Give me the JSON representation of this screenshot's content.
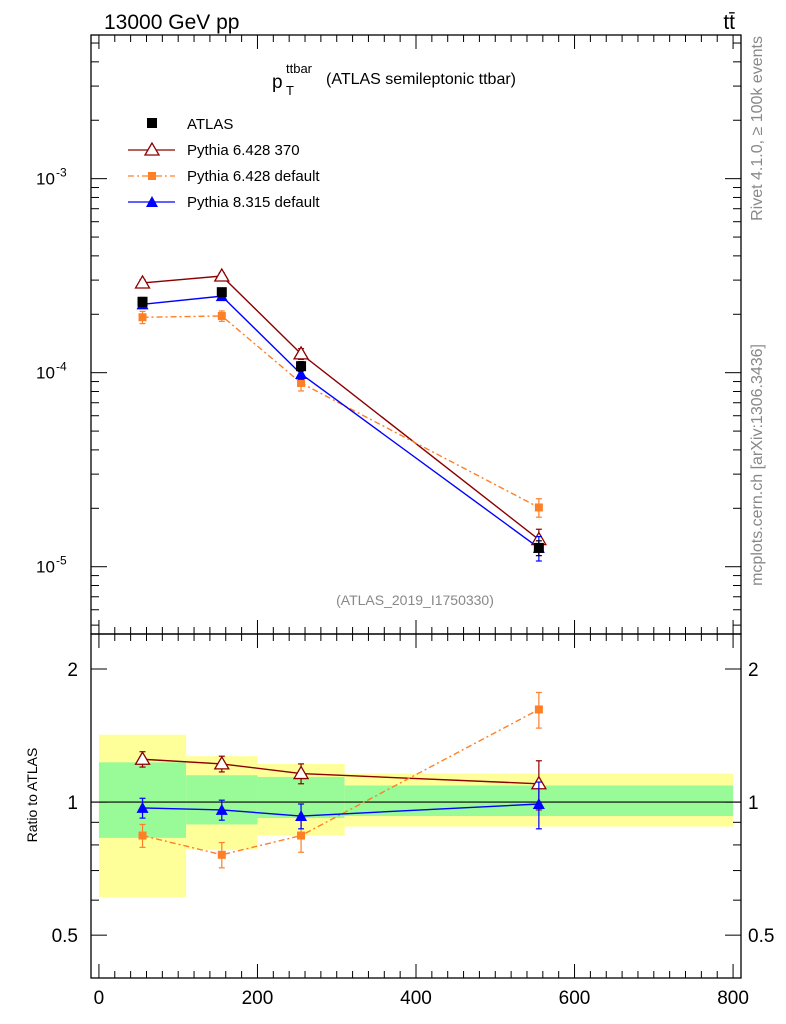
{
  "header": {
    "energy": "13000 GeV pp",
    "process": "tt̄",
    "rivet": "Rivet 4.1.0, ≥ 100k events",
    "source": "mcplots.cern.ch [arXiv:1306.3436]"
  },
  "chart_data": {
    "type": "line",
    "title_main": "p",
    "title_sup": "ttbar",
    "title_sub": "T",
    "title_rest": "(ATLAS semileptonic ttbar)",
    "analysis": "(ATLAS_2019_I1750330)",
    "xlim": [
      -10,
      810
    ],
    "ylim_main": [
      4.5e-06,
      0.0055
    ],
    "ylim_ratio": [
      0.4,
      2.4
    ],
    "ylabel_ratio": "Ratio to ATLAS",
    "yticks_main": [
      "10^-3",
      "10^-4",
      "10^-5"
    ],
    "yticks_ratio": [
      "2",
      "1",
      "0.5"
    ],
    "xticks": [
      "0",
      "200",
      "400",
      "600",
      "800"
    ],
    "bin_edges": [
      0,
      110,
      200,
      310,
      800
    ],
    "band_green": [
      [
        0.83,
        1.23
      ],
      [
        0.89,
        1.15
      ],
      [
        0.92,
        1.14
      ],
      [
        0.93,
        1.09
      ]
    ],
    "band_yellow": [
      [
        0.61,
        1.42
      ],
      [
        0.78,
        1.27
      ],
      [
        0.84,
        1.22
      ],
      [
        0.88,
        1.16
      ]
    ],
    "series": [
      {
        "name": "ATLAS",
        "style": "data",
        "color": "#000000",
        "x": [
          55,
          155,
          255,
          555
        ],
        "y": [
          0.000232,
          0.00026,
          0.000108,
          1.25e-05
        ],
        "err": [
          1.2e-05,
          1.2e-05,
          6e-06,
          1.1e-06
        ]
      },
      {
        "name": "Pythia 6.428 370",
        "style": "open-triangle",
        "color": "#8b0000",
        "dash": "",
        "x": [
          55,
          155,
          255,
          555
        ],
        "y": [
          0.00029,
          0.000315,
          0.000125,
          1.38e-05
        ],
        "err": [
          1.2e-05,
          1.2e-05,
          8e-06,
          1.8e-06
        ],
        "ratio": [
          1.25,
          1.22,
          1.16,
          1.1
        ],
        "ratio_err": [
          0.05,
          0.05,
          0.06,
          0.14
        ]
      },
      {
        "name": "Pythia 6.428 default",
        "style": "filled-square",
        "color": "#ff7f27",
        "dash": "6,3,2,3",
        "x": [
          55,
          155,
          255,
          555
        ],
        "y": [
          0.000193,
          0.000196,
          8.85e-05,
          2.02e-05
        ],
        "err": [
          1.4e-05,
          1.2e-05,
          8e-06,
          2.2e-06
        ],
        "ratio": [
          0.84,
          0.76,
          0.84,
          1.62
        ],
        "ratio_err": [
          0.05,
          0.05,
          0.07,
          0.15
        ]
      },
      {
        "name": "Pythia 8.315 default",
        "style": "filled-triangle",
        "color": "#0000ff",
        "dash": "",
        "x": [
          55,
          155,
          255,
          555
        ],
        "y": [
          0.000225,
          0.000248,
          9.85e-05,
          1.25e-05
        ],
        "err": [
          1e-05,
          1e-05,
          6e-06,
          1.8e-06
        ],
        "ratio": [
          0.97,
          0.96,
          0.93,
          0.99
        ],
        "ratio_err": [
          0.05,
          0.05,
          0.06,
          0.12
        ]
      }
    ]
  }
}
